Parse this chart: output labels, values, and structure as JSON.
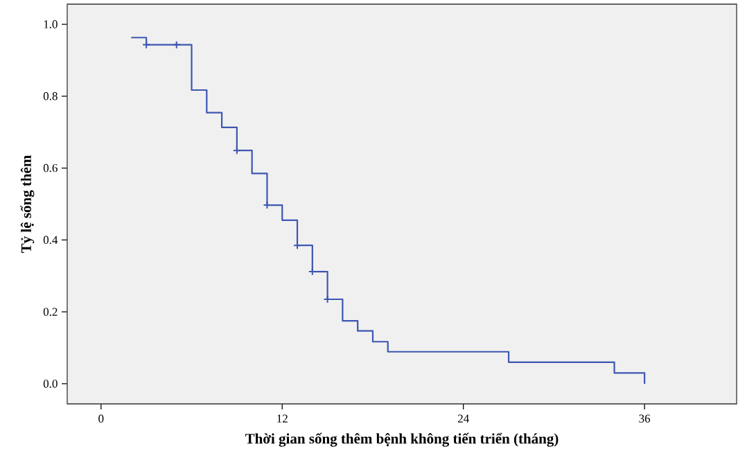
{
  "chart_data": {
    "type": "step",
    "xlabel": "Thời gian sống thêm bệnh không tiến triển (tháng)",
    "ylabel": "Tỷ lệ sống thêm",
    "xlim": [
      -2.24,
      42.1
    ],
    "ylim": [
      -0.056,
      1.056
    ],
    "xticks": [
      0,
      12,
      24,
      36
    ],
    "yticks": [
      {
        "value": 0,
        "label": "0.0"
      },
      {
        "value": 0.2,
        "label": "0.2"
      },
      {
        "value": 0.4,
        "label": "0.4"
      },
      {
        "value": 0.6,
        "label": "0.6"
      },
      {
        "value": 0.8,
        "label": "0.8"
      },
      {
        "value": 1,
        "label": "1.0"
      }
    ],
    "grid": false,
    "legend": false,
    "series": [
      {
        "color": "#3d56b2",
        "x": [
          2,
          3,
          6,
          7,
          8,
          9,
          10,
          11,
          12,
          13,
          14,
          15,
          16,
          17,
          18,
          19,
          27,
          34,
          36
        ],
        "values": [
          0.963,
          0.943,
          0.817,
          0.754,
          0.713,
          0.649,
          0.585,
          0.497,
          0.455,
          0.385,
          0.312,
          0.235,
          0.175,
          0.147,
          0.117,
          0.089,
          0.06,
          0.03,
          0.0
        ]
      },
      {
        "type": "scatter",
        "color": "#3d56b2",
        "marker": "cross",
        "x": [
          3,
          5,
          9,
          11,
          13,
          14,
          15
        ],
        "values": [
          0.943,
          0.943,
          0.649,
          0.497,
          0.385,
          0.312,
          0.235
        ]
      }
    ]
  }
}
